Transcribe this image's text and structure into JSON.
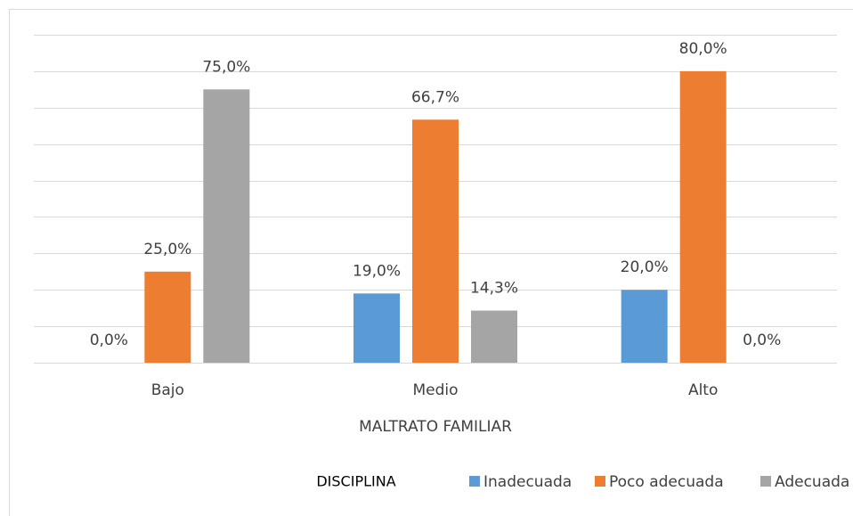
{
  "chart_data": {
    "type": "bar",
    "categories": [
      "Bajo",
      "Medio",
      "Alto"
    ],
    "x_label": "MALTRATO FAMILIAR",
    "legend_title": "DISCIPLINA",
    "legend": "bottom",
    "series": [
      {
        "name": "Inadecuada",
        "color": "#5b9bd5",
        "values": [
          0,
          19,
          20
        ],
        "value_labels": [
          "0,0%",
          "19,0%",
          "20,0%"
        ]
      },
      {
        "name": "Poco adecuada",
        "color": "#ed7d31",
        "values": [
          25,
          66.7,
          80
        ],
        "value_labels": [
          "25,0%",
          "66,7%",
          "80,0%"
        ]
      },
      {
        "name": "Adecuada",
        "color": "#a5a5a5",
        "values": [
          75,
          14.3,
          0
        ],
        "value_labels": [
          "75,0%",
          "14,3%",
          "0,0%"
        ]
      }
    ],
    "ylim": [
      0,
      90
    ],
    "yticks": [
      0,
      10,
      20,
      30,
      40,
      50,
      60,
      70,
      80,
      90
    ],
    "grid": true
  }
}
